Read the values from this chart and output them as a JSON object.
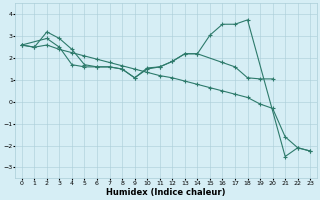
{
  "xlabel": "Humidex (Indice chaleur)",
  "xlim": [
    -0.5,
    23.5
  ],
  "ylim": [
    -3.5,
    4.5
  ],
  "xticks": [
    0,
    1,
    2,
    3,
    4,
    5,
    6,
    7,
    8,
    9,
    10,
    11,
    12,
    13,
    14,
    15,
    16,
    17,
    18,
    19,
    20,
    21,
    22,
    23
  ],
  "yticks": [
    -3,
    -2,
    -1,
    0,
    1,
    2,
    3,
    4
  ],
  "line_color": "#2d7a6b",
  "bg_color": "#d6eef5",
  "grid_color": "#aacdd8",
  "line1_x": [
    0,
    1,
    2,
    3,
    4,
    5,
    6,
    7,
    8,
    9,
    10,
    11,
    12,
    13,
    14,
    15,
    16,
    17,
    18,
    21,
    22,
    23
  ],
  "line1_y": [
    2.6,
    2.5,
    3.2,
    2.9,
    2.4,
    1.7,
    1.6,
    1.6,
    1.5,
    1.1,
    1.55,
    1.6,
    1.85,
    2.2,
    2.2,
    3.05,
    3.55,
    3.55,
    3.75,
    -2.5,
    -2.1,
    -2.25
  ],
  "line2_x": [
    0,
    1,
    2,
    3,
    4,
    5,
    6,
    7,
    8,
    9,
    10,
    11,
    12,
    13,
    14,
    15,
    16,
    17,
    18,
    19,
    20,
    21,
    22,
    23
  ],
  "line2_y": [
    2.6,
    2.5,
    2.6,
    2.4,
    2.25,
    2.1,
    1.95,
    1.8,
    1.65,
    1.5,
    1.35,
    1.2,
    1.1,
    0.95,
    0.8,
    0.65,
    0.5,
    0.35,
    0.2,
    -0.1,
    -0.3,
    -1.6,
    -2.1,
    -2.25
  ],
  "line3_x": [
    0,
    2,
    3,
    4,
    5,
    6,
    7,
    8,
    9,
    10,
    11,
    12,
    13,
    14,
    16,
    17,
    18,
    19,
    20
  ],
  "line3_y": [
    2.6,
    2.9,
    2.5,
    1.7,
    1.6,
    1.6,
    1.6,
    1.5,
    1.1,
    1.5,
    1.6,
    1.85,
    2.2,
    2.2,
    1.8,
    1.6,
    1.1,
    1.05,
    1.05
  ]
}
